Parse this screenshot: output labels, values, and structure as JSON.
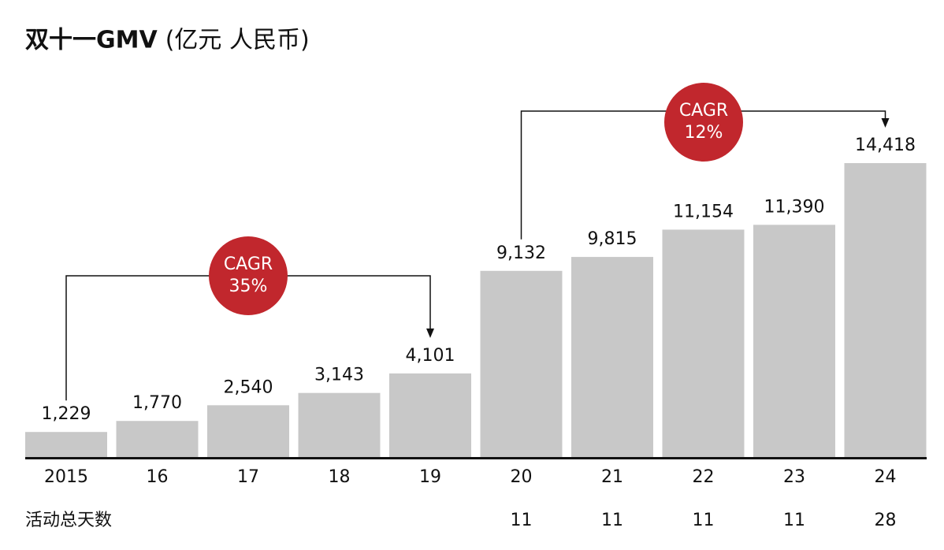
{
  "chart_data": {
    "type": "bar",
    "title": "双十一GMV",
    "title_unit": "(亿元 人民币)",
    "categories": [
      "2015",
      "16",
      "17",
      "18",
      "19",
      "20",
      "21",
      "22",
      "23",
      "24"
    ],
    "values": [
      1229,
      1770,
      2540,
      3143,
      4101,
      9132,
      9815,
      11154,
      11390,
      14418
    ],
    "value_labels": [
      "1,229",
      "1,770",
      "2,540",
      "3,143",
      "4,101",
      "9,132",
      "9,815",
      "11,154",
      "11,390",
      "14,418"
    ],
    "color": "#c8c8c8",
    "annotations": [
      {
        "lines": [
          "CAGR",
          "35%"
        ],
        "color": "#c1272d"
      },
      {
        "lines": [
          "CAGR",
          "12%"
        ],
        "color": "#c1272d"
      }
    ],
    "days_label": "活动总天数",
    "days": [
      null,
      null,
      null,
      null,
      null,
      "11",
      "11",
      "11",
      "11",
      "28"
    ]
  }
}
